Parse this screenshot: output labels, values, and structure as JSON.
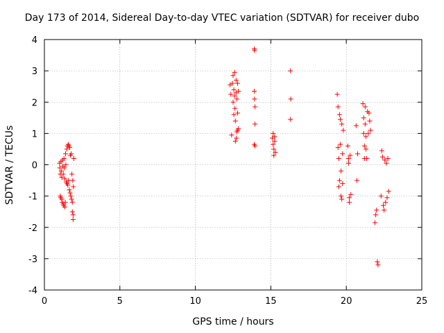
{
  "chart_data": {
    "type": "scatter",
    "title": "Day 173 of 2014, Sidereal Day-to-day VTEC variation (SDTVAR) for receiver dubo",
    "xlabel": "GPS time / hours",
    "ylabel": "SDTVAR / TECUs",
    "xlim": [
      0,
      25
    ],
    "ylim": [
      -4,
      4
    ],
    "xticks": [
      0,
      5,
      10,
      15,
      20,
      25
    ],
    "yticks": [
      -4,
      -3,
      -2,
      -1,
      0,
      1,
      2,
      3,
      4
    ],
    "grid": true,
    "marker": "+",
    "color": "#ff0000",
    "series": [
      {
        "name": "SDTVAR",
        "points": [
          [
            1.0,
            0.05
          ],
          [
            1.02,
            -0.1
          ],
          [
            1.05,
            -0.3
          ],
          [
            1.05,
            -1.0
          ],
          [
            1.08,
            -1.05
          ],
          [
            1.1,
            0.1
          ],
          [
            1.12,
            -0.2
          ],
          [
            1.15,
            -0.4
          ],
          [
            1.15,
            -1.1
          ],
          [
            1.18,
            -1.2
          ],
          [
            1.2,
            0.15
          ],
          [
            1.22,
            -0.05
          ],
          [
            1.25,
            -0.3
          ],
          [
            1.25,
            -1.25
          ],
          [
            1.28,
            -1.3
          ],
          [
            1.3,
            0.2
          ],
          [
            1.32,
            -0.1
          ],
          [
            1.35,
            -0.45
          ],
          [
            1.35,
            -1.35
          ],
          [
            1.38,
            -1.2
          ],
          [
            1.4,
            0.35
          ],
          [
            1.42,
            0.0
          ],
          [
            1.45,
            -0.55
          ],
          [
            1.48,
            0.5
          ],
          [
            1.5,
            -0.6
          ],
          [
            1.52,
            0.6
          ],
          [
            1.55,
            -0.65
          ],
          [
            1.58,
            0.65
          ],
          [
            1.6,
            -0.5
          ],
          [
            1.62,
            0.6
          ],
          [
            1.65,
            -0.8
          ],
          [
            1.68,
            0.55
          ],
          [
            1.7,
            -0.9
          ],
          [
            1.72,
            0.3
          ],
          [
            1.75,
            -1.0
          ],
          [
            1.78,
            0.35
          ],
          [
            1.8,
            -1.1
          ],
          [
            1.82,
            -0.3
          ],
          [
            1.85,
            -1.2
          ],
          [
            1.85,
            -1.5
          ],
          [
            1.88,
            -0.5
          ],
          [
            1.9,
            -1.6
          ],
          [
            1.9,
            -1.75
          ],
          [
            1.92,
            -0.7
          ],
          [
            1.95,
            0.2
          ],
          [
            12.3,
            2.55
          ],
          [
            12.35,
            2.25
          ],
          [
            12.4,
            0.95
          ],
          [
            12.45,
            2.6
          ],
          [
            12.5,
            2.85
          ],
          [
            12.5,
            2.0
          ],
          [
            12.55,
            1.6
          ],
          [
            12.55,
            2.4
          ],
          [
            12.6,
            2.95
          ],
          [
            12.6,
            2.2
          ],
          [
            12.62,
            1.8
          ],
          [
            12.65,
            0.75
          ],
          [
            12.65,
            1.4
          ],
          [
            12.7,
            2.7
          ],
          [
            12.7,
            2.3
          ],
          [
            12.72,
            0.85
          ],
          [
            12.75,
            2.1
          ],
          [
            12.75,
            1.05
          ],
          [
            12.78,
            1.1
          ],
          [
            12.8,
            2.6
          ],
          [
            12.8,
            1.65
          ],
          [
            12.85,
            2.35
          ],
          [
            12.85,
            1.15
          ],
          [
            13.9,
            3.7
          ],
          [
            13.92,
            3.65
          ],
          [
            13.9,
            2.35
          ],
          [
            13.92,
            2.1
          ],
          [
            13.95,
            1.85
          ],
          [
            13.95,
            1.3
          ],
          [
            13.9,
            0.65
          ],
          [
            13.95,
            0.6
          ],
          [
            15.1,
            0.85
          ],
          [
            15.15,
            1.0
          ],
          [
            15.15,
            0.65
          ],
          [
            15.2,
            0.5
          ],
          [
            15.2,
            0.3
          ],
          [
            15.25,
            0.9
          ],
          [
            15.25,
            0.75
          ],
          [
            15.3,
            0.4
          ],
          [
            16.3,
            3.0
          ],
          [
            16.32,
            2.1
          ],
          [
            16.3,
            1.45
          ],
          [
            19.4,
            2.25
          ],
          [
            19.45,
            1.85
          ],
          [
            19.45,
            0.55
          ],
          [
            19.5,
            -0.7
          ],
          [
            19.5,
            0.2
          ],
          [
            19.55,
            1.6
          ],
          [
            19.55,
            -0.5
          ],
          [
            19.6,
            1.45
          ],
          [
            19.6,
            0.65
          ],
          [
            19.65,
            -0.2
          ],
          [
            19.65,
            -1.0
          ],
          [
            19.7,
            1.3
          ],
          [
            19.7,
            -1.1
          ],
          [
            19.75,
            0.35
          ],
          [
            19.75,
            -0.6
          ],
          [
            19.8,
            1.1
          ],
          [
            20.1,
            0.6
          ],
          [
            20.15,
            0.2
          ],
          [
            20.15,
            0.05
          ],
          [
            20.2,
            -1.2
          ],
          [
            20.2,
            -1.05
          ],
          [
            20.25,
            0.3
          ],
          [
            20.3,
            -0.95
          ],
          [
            20.65,
            1.25
          ],
          [
            20.7,
            -0.5
          ],
          [
            20.75,
            0.35
          ],
          [
            21.1,
            1.95
          ],
          [
            21.15,
            1.5
          ],
          [
            21.15,
            1.0
          ],
          [
            21.2,
            0.2
          ],
          [
            21.2,
            0.6
          ],
          [
            21.25,
            1.85
          ],
          [
            21.25,
            1.3
          ],
          [
            21.3,
            0.9
          ],
          [
            21.3,
            0.5
          ],
          [
            21.35,
            0.2
          ],
          [
            21.4,
            1.7
          ],
          [
            21.45,
            1.0
          ],
          [
            21.5,
            1.65
          ],
          [
            21.55,
            1.4
          ],
          [
            21.6,
            1.1
          ],
          [
            21.9,
            -1.85
          ],
          [
            21.95,
            -1.6
          ],
          [
            22.0,
            -1.45
          ],
          [
            22.05,
            -3.1
          ],
          [
            22.1,
            -3.2
          ],
          [
            22.3,
            -1.0
          ],
          [
            22.35,
            0.45
          ],
          [
            22.4,
            0.25
          ],
          [
            22.45,
            -1.3
          ],
          [
            22.5,
            -1.45
          ],
          [
            22.55,
            0.15
          ],
          [
            22.6,
            -1.2
          ],
          [
            22.65,
            0.05
          ],
          [
            22.7,
            -1.05
          ],
          [
            22.75,
            0.2
          ],
          [
            22.8,
            -0.85
          ]
        ]
      }
    ]
  }
}
